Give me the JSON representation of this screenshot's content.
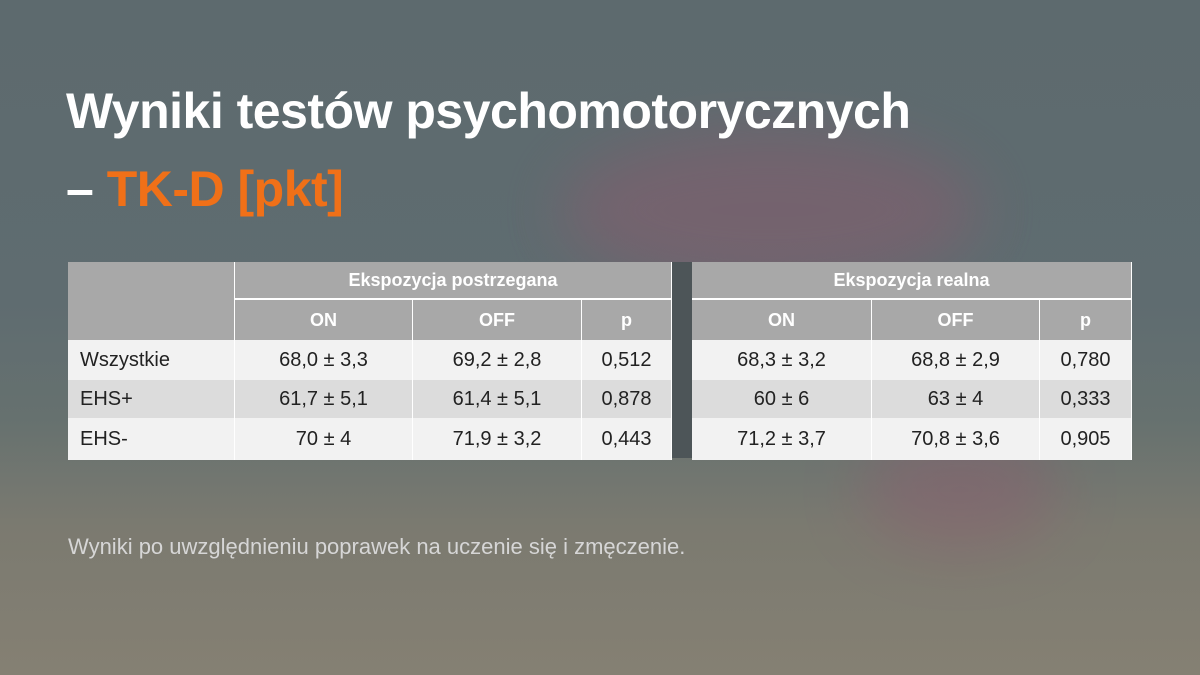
{
  "title": {
    "line1": "Wyniki testów psychomotorycznych",
    "dash": "–",
    "highlight": "TK-D [pkt]"
  },
  "table": {
    "groups": [
      "Ekspozycja postrzegana",
      "Ekspozycja realna"
    ],
    "columns": [
      "ON",
      "OFF",
      "p",
      "ON",
      "OFF",
      "p"
    ],
    "rows": [
      [
        "Wszystkie",
        "68,0 ± 3,3",
        "69,2 ± 2,8",
        "0,512",
        "68,3 ± 3,2",
        "68,8 ± 2,9",
        "0,780"
      ],
      [
        "EHS+",
        "61,7 ± 5,1",
        "61,4 ± 5,1",
        "0,878",
        "60 ± 6",
        "63 ± 4",
        "0,333"
      ],
      [
        "EHS-",
        "70 ± 4",
        "71,9 ± 3,2",
        "0,443",
        "71,2 ± 3,7",
        "70,8 ± 3,6",
        "0,905"
      ]
    ]
  },
  "note": "Wyniki po uwzględnieniu poprawek na uczenie się i zmęczenie."
}
